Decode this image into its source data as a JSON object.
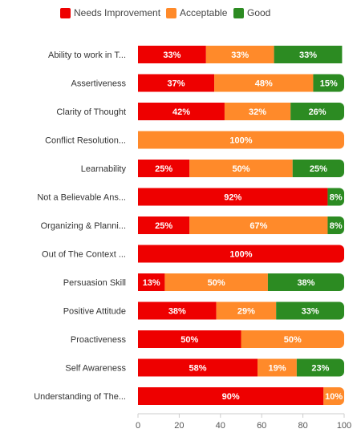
{
  "chart_data": {
    "type": "bar",
    "orientation": "horizontal",
    "stacked": true,
    "categories": [
      "Ability to work in T...",
      "Assertiveness",
      "Clarity of Thought",
      "Conflict Resolution...",
      "Learnability",
      "Not a Believable Ans...",
      "Organizing & Planni...",
      "Out of The Context ...",
      "Persuasion Skill",
      "Positive Attitude",
      "Proactiveness",
      "Self Awareness",
      "Understanding of The..."
    ],
    "series": [
      {
        "name": "Needs Improvement",
        "color": "#ee0000",
        "values": [
          33,
          37,
          42,
          0,
          25,
          92,
          25,
          100,
          13,
          38,
          50,
          58,
          90
        ]
      },
      {
        "name": "Acceptable",
        "color": "#ff8a2a",
        "values": [
          33,
          48,
          32,
          100,
          50,
          0,
          67,
          0,
          50,
          29,
          50,
          19,
          10
        ]
      },
      {
        "name": "Good",
        "color": "#2c8b22",
        "values": [
          33,
          15,
          26,
          0,
          25,
          8,
          8,
          0,
          38,
          33,
          0,
          23,
          0
        ]
      }
    ],
    "data_label_suffix": "%",
    "x_ticks": [
      "0",
      "20",
      "40",
      "60",
      "80",
      "100"
    ],
    "xlim": [
      0,
      100
    ],
    "legend_position": "top",
    "grid": false
  }
}
